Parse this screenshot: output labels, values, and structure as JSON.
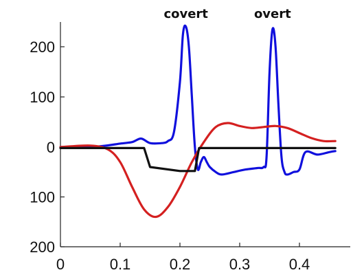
{
  "chart_data": {
    "type": "line",
    "title": "",
    "xlabel": "",
    "ylabel": "",
    "xlim": [
      0,
      0.48
    ],
    "ylim": [
      -200,
      250
    ],
    "x_ticks": [
      {
        "value": 0,
        "label": "0"
      },
      {
        "value": 0.1,
        "label": "0.1"
      },
      {
        "value": 0.2,
        "label": "0.2"
      },
      {
        "value": 0.3,
        "label": "0.3"
      },
      {
        "value": 0.4,
        "label": "0.4"
      }
    ],
    "y_ticks": [
      {
        "value": 200,
        "label": "200"
      },
      {
        "value": 100,
        "label": "100"
      },
      {
        "value": 0,
        "label": "0"
      },
      {
        "value": -100,
        "label": "100"
      },
      {
        "value": -200,
        "label": "200"
      }
    ],
    "grid": false,
    "legend": "none",
    "annotations": [
      {
        "text": "covert",
        "x": 0.21,
        "y": 250
      },
      {
        "text": "overt",
        "x": 0.355,
        "y": 250
      }
    ],
    "series": [
      {
        "color": "#1010dd",
        "x": [
          0,
          0.04,
          0.07,
          0.1,
          0.12,
          0.135,
          0.15,
          0.17,
          0.18,
          0.19,
          0.2,
          0.205,
          0.21,
          0.215,
          0.22,
          0.225,
          0.23,
          0.235,
          0.24,
          0.245,
          0.25,
          0.26,
          0.27,
          0.29,
          0.31,
          0.33,
          0.34,
          0.345,
          0.35,
          0.355,
          0.36,
          0.365,
          0.37,
          0.375,
          0.38,
          0.39,
          0.4,
          0.41,
          0.43,
          0.45,
          0.46
        ],
        "y": [
          0,
          0,
          2,
          7,
          10,
          17,
          8,
          8,
          12,
          30,
          130,
          225,
          240,
          200,
          100,
          0,
          -45,
          -30,
          -20,
          -30,
          -40,
          -50,
          -55,
          -50,
          -45,
          -42,
          -40,
          -20,
          150,
          235,
          200,
          80,
          -20,
          -50,
          -55,
          -50,
          -45,
          -10,
          -15,
          -10,
          -8
        ]
      },
      {
        "color": "#d42020",
        "x": [
          0,
          0.05,
          0.08,
          0.1,
          0.12,
          0.14,
          0.16,
          0.18,
          0.2,
          0.22,
          0.24,
          0.26,
          0.28,
          0.3,
          0.32,
          0.34,
          0.36,
          0.38,
          0.4,
          0.42,
          0.44,
          0.46
        ],
        "y": [
          0,
          3,
          -5,
          -30,
          -80,
          -125,
          -140,
          -120,
          -80,
          -30,
          10,
          40,
          48,
          42,
          38,
          40,
          42,
          38,
          28,
          18,
          12,
          12
        ]
      },
      {
        "color": "#111111",
        "x": [
          0,
          0.1,
          0.135,
          0.14,
          0.15,
          0.2,
          0.225,
          0.232,
          0.25,
          0.35,
          0.46
        ],
        "y": [
          -2,
          -2,
          -2,
          -2,
          -40,
          -48,
          -48,
          -2,
          -2,
          -2,
          -2
        ]
      }
    ]
  }
}
